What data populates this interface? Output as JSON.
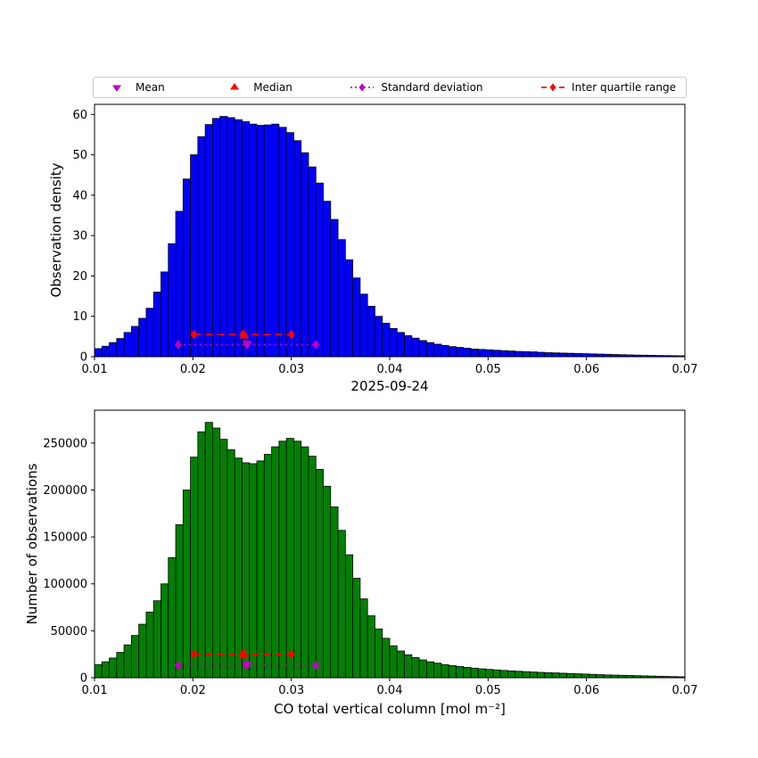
{
  "figure": {
    "title": "2025-09-24",
    "xlabel": "CO total vertical column [mol m⁻²]",
    "background": "#ffffff"
  },
  "legend": {
    "items": [
      {
        "label": "Mean",
        "marker": "triangle-down",
        "color": "#BF00BF"
      },
      {
        "label": "Median",
        "marker": "triangle-up",
        "color": "#FF0000"
      },
      {
        "label": "Standard deviation",
        "marker": "diamond-dotted-line",
        "color": "#BF00BF"
      },
      {
        "label": "Inter quartile range",
        "marker": "diamond-dashed-line",
        "color": "#FF0000"
      }
    ]
  },
  "chart_data": [
    {
      "type": "bar",
      "panel": "top",
      "ylabel": "Observation density",
      "bar_color": "#0000FF",
      "edge_color": "#000000",
      "bin_start": 0.01,
      "bin_width": 0.00075,
      "xlim": [
        0.01,
        0.07
      ],
      "ylim": [
        0,
        62.5
      ],
      "xticks": [
        0.01,
        0.02,
        0.03,
        0.04,
        0.05,
        0.06,
        0.07
      ],
      "xtick_labels": [
        "0.01",
        "0.02",
        "0.03",
        "0.04",
        "0.05",
        "0.06",
        "0.07"
      ],
      "yticks": [
        0,
        10,
        20,
        30,
        40,
        50,
        60
      ],
      "ytick_labels": [
        "0",
        "10",
        "20",
        "30",
        "40",
        "50",
        "60"
      ],
      "values": [
        2.0,
        2.6,
        3.5,
        4.5,
        6.0,
        7.5,
        9.5,
        12.0,
        16.0,
        21.0,
        28.0,
        36.0,
        44.0,
        50.0,
        54.5,
        57.5,
        59.0,
        59.5,
        59.2,
        58.7,
        58.2,
        57.6,
        57.3,
        57.4,
        57.6,
        56.8,
        55.5,
        53.5,
        50.5,
        47.0,
        43.0,
        38.5,
        34.0,
        29.0,
        24.0,
        19.5,
        15.5,
        12.5,
        10.0,
        8.3,
        7.0,
        6.0,
        5.2,
        4.6,
        4.0,
        3.5,
        3.1,
        2.8,
        2.5,
        2.3,
        2.1,
        1.9,
        1.8,
        1.7,
        1.6,
        1.5,
        1.4,
        1.3,
        1.25,
        1.2,
        1.1,
        1.0,
        0.95,
        0.9,
        0.85,
        0.8,
        0.75,
        0.7,
        0.65,
        0.6,
        0.55,
        0.5,
        0.45,
        0.4,
        0.38,
        0.35,
        0.3,
        0.28,
        0.25,
        0.22
      ],
      "stats": {
        "mean": 0.0255,
        "median": 0.0252,
        "std_low": 0.0185,
        "std_high": 0.0325,
        "q1": 0.0201,
        "q3": 0.03
      },
      "errorbars": [
        {
          "x1": 0.0201,
          "x2": 0.03,
          "y": 5.5,
          "color": "#FF0000",
          "style": "dashed"
        },
        {
          "x1": 0.0185,
          "x2": 0.0325,
          "y": 3.0,
          "color": "#BF00BF",
          "style": "dotted"
        }
      ],
      "markers": [
        {
          "x": 0.0252,
          "y": 5.5,
          "shape": "triangle-up",
          "color": "#FF0000"
        },
        {
          "x": 0.0255,
          "y": 3.0,
          "shape": "triangle-down",
          "color": "#BF00BF"
        }
      ]
    },
    {
      "type": "bar",
      "panel": "bottom",
      "ylabel": "Number of observations",
      "bar_color": "#008000",
      "edge_color": "#000000",
      "bin_start": 0.01,
      "bin_width": 0.00075,
      "xlim": [
        0.01,
        0.07
      ],
      "ylim": [
        0,
        285000
      ],
      "xticks": [
        0.01,
        0.02,
        0.03,
        0.04,
        0.05,
        0.06,
        0.07
      ],
      "xtick_labels": [
        "0.01",
        "0.02",
        "0.03",
        "0.04",
        "0.05",
        "0.06",
        "0.07"
      ],
      "yticks": [
        0,
        50000,
        100000,
        150000,
        200000,
        250000
      ],
      "ytick_labels": [
        "0",
        "50000",
        "100000",
        "150000",
        "200000",
        "250000"
      ],
      "values": [
        14000,
        17000,
        21000,
        27000,
        35000,
        45000,
        57000,
        70000,
        82000,
        100000,
        128000,
        163000,
        200000,
        235000,
        262000,
        272000,
        266000,
        254000,
        243000,
        234000,
        229000,
        228000,
        231000,
        238000,
        246000,
        252000,
        255000,
        252000,
        246000,
        236000,
        222000,
        204000,
        182000,
        157000,
        131000,
        106000,
        84000,
        66000,
        52000,
        42000,
        34000,
        28500,
        24500,
        21500,
        19000,
        17000,
        15500,
        14000,
        13000,
        12000,
        11000,
        10200,
        9500,
        8900,
        8300,
        7800,
        7300,
        6900,
        6500,
        6100,
        5700,
        5400,
        5100,
        4800,
        4500,
        4200,
        3900,
        3600,
        3300,
        3000,
        2800,
        2600,
        2400,
        2200,
        2000,
        1800,
        1600,
        1400,
        1200,
        1000
      ],
      "stats": {
        "mean": 0.0255,
        "median": 0.0252,
        "std_low": 0.0185,
        "std_high": 0.0325,
        "q1": 0.0201,
        "q3": 0.03
      },
      "errorbars": [
        {
          "x1": 0.0201,
          "x2": 0.03,
          "y": 25000,
          "color": "#FF0000",
          "style": "dashed"
        },
        {
          "x1": 0.0185,
          "x2": 0.0325,
          "y": 13000,
          "color": "#BF00BF",
          "style": "dotted"
        }
      ],
      "markers": [
        {
          "x": 0.0252,
          "y": 25000,
          "shape": "triangle-up",
          "color": "#FF0000"
        },
        {
          "x": 0.0255,
          "y": 13000,
          "shape": "triangle-down",
          "color": "#BF00BF"
        }
      ]
    }
  ]
}
